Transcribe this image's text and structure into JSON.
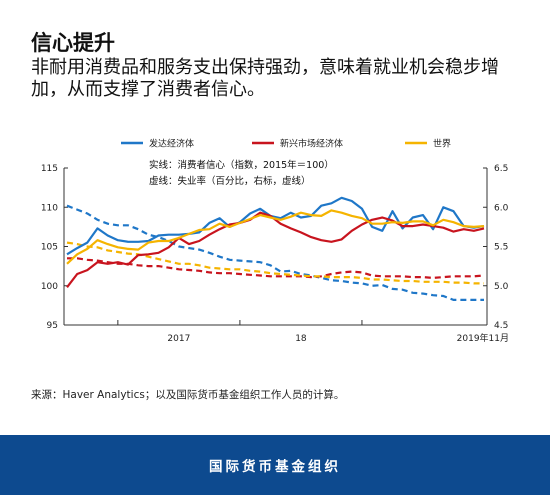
{
  "header": {
    "title": "信心提升",
    "subtitle": "非耐用消费品和服务支出保持强劲，意味着就业机会稳步增加，从而支撑了消费者信心。"
  },
  "legend": [
    {
      "label": "发达经济体",
      "color": "#1f77c8"
    },
    {
      "label": "新兴市场经济体",
      "color": "#c8141e"
    },
    {
      "label": "世界",
      "color": "#f5b400"
    }
  ],
  "notes": {
    "solid": "实线：消费者信心（指数，2015年＝100）",
    "dashed": "虚线：失业率（百分比，右标，虚线）"
  },
  "source": "来源：Haver Analytics；以及国际货币基金组织工作人员的计算。",
  "footer": "国际货币基金组织",
  "chart_data": {
    "type": "line",
    "title": "信心提升",
    "x_start": "2016-08",
    "x_end": "2019-11",
    "x_tick_labels": [
      "2017",
      "18",
      "2019年11月"
    ],
    "y_left": {
      "ylim": [
        95,
        115
      ],
      "ticks": [
        95,
        100,
        105,
        110,
        115
      ],
      "label": "消费者信心（指数，2015年＝100）"
    },
    "y_right": {
      "ylim": [
        4.5,
        6.5
      ],
      "ticks": [
        4.5,
        5.0,
        5.5,
        6.0,
        6.5
      ],
      "label": "失业率（百分比）"
    },
    "grid": false,
    "legend_position": "top",
    "confidence": [
      {
        "name": "发达经济体",
        "color": "#1f77c8",
        "values": [
          104.0,
          104.8,
          105.5,
          107.3,
          106.4,
          105.8,
          105.6,
          105.6,
          105.7,
          106.4,
          106.5,
          106.5,
          106.6,
          106.8,
          108.0,
          108.6,
          107.5,
          108.1,
          109.2,
          109.8,
          108.9,
          108.6,
          109.3,
          108.7,
          108.9,
          110.2,
          110.5,
          111.2,
          110.8,
          109.8,
          107.5,
          107.0,
          109.5,
          107.3,
          108.7,
          109.0,
          107.2,
          110.0,
          109.5,
          107.6,
          107.4,
          107.6
        ]
      },
      {
        "name": "新兴市场经济体",
        "color": "#c8141e",
        "values": [
          99.8,
          101.5,
          102.0,
          103.0,
          102.8,
          103.0,
          102.7,
          103.9,
          104.0,
          104.2,
          104.9,
          106.1,
          105.3,
          105.7,
          106.5,
          107.2,
          107.8,
          108.0,
          108.4,
          109.3,
          108.9,
          107.9,
          107.3,
          106.8,
          106.2,
          105.8,
          105.6,
          105.9,
          107.0,
          107.8,
          108.4,
          108.7,
          108.3,
          107.6,
          107.6,
          107.8,
          107.6,
          107.4,
          106.9,
          107.2,
          107.0,
          107.3
        ]
      },
      {
        "name": "世界",
        "color": "#f5b400",
        "values": [
          102.8,
          104.0,
          104.7,
          105.8,
          105.3,
          104.9,
          104.7,
          104.6,
          105.5,
          105.7,
          105.7,
          106.1,
          106.6,
          107.1,
          107.2,
          107.9,
          107.5,
          108.0,
          108.5,
          109.0,
          108.7,
          108.4,
          108.8,
          109.3,
          109.0,
          108.9,
          109.6,
          109.3,
          108.9,
          108.6,
          107.9,
          107.9,
          108.1,
          108.0,
          108.2,
          108.2,
          107.7,
          108.4,
          108.1,
          107.6,
          107.5,
          107.6
        ]
      }
    ],
    "unemployment": [
      {
        "name": "发达经济体",
        "color": "#1f77c8",
        "values": [
          6.02,
          5.97,
          5.92,
          5.84,
          5.79,
          5.77,
          5.77,
          5.72,
          5.65,
          5.62,
          5.57,
          5.5,
          5.48,
          5.46,
          5.42,
          5.37,
          5.33,
          5.32,
          5.31,
          5.3,
          5.26,
          5.18,
          5.19,
          5.15,
          5.13,
          5.1,
          5.07,
          5.06,
          5.04,
          5.03,
          5.0,
          5.01,
          4.96,
          4.95,
          4.91,
          4.9,
          4.88,
          4.87,
          4.82,
          4.82,
          4.82,
          4.82
        ]
      },
      {
        "name": "新兴市场经济体",
        "color": "#c8141e",
        "values": [
          5.35,
          5.35,
          5.33,
          5.32,
          5.3,
          5.28,
          5.28,
          5.26,
          5.25,
          5.25,
          5.23,
          5.21,
          5.2,
          5.19,
          5.17,
          5.16,
          5.16,
          5.15,
          5.14,
          5.13,
          5.12,
          5.12,
          5.12,
          5.12,
          5.11,
          5.12,
          5.15,
          5.17,
          5.18,
          5.17,
          5.13,
          5.12,
          5.12,
          5.12,
          5.11,
          5.11,
          5.1,
          5.11,
          5.12,
          5.12,
          5.12,
          5.13
        ]
      },
      {
        "name": "世界",
        "color": "#f5b400",
        "values": [
          5.55,
          5.53,
          5.5,
          5.49,
          5.45,
          5.43,
          5.41,
          5.4,
          5.37,
          5.34,
          5.31,
          5.28,
          5.28,
          5.26,
          5.23,
          5.22,
          5.21,
          5.21,
          5.19,
          5.18,
          5.16,
          5.15,
          5.14,
          5.13,
          5.12,
          5.12,
          5.11,
          5.11,
          5.11,
          5.1,
          5.08,
          5.08,
          5.07,
          5.06,
          5.06,
          5.05,
          5.05,
          5.05,
          5.04,
          5.04,
          5.03,
          5.03
        ]
      }
    ]
  }
}
